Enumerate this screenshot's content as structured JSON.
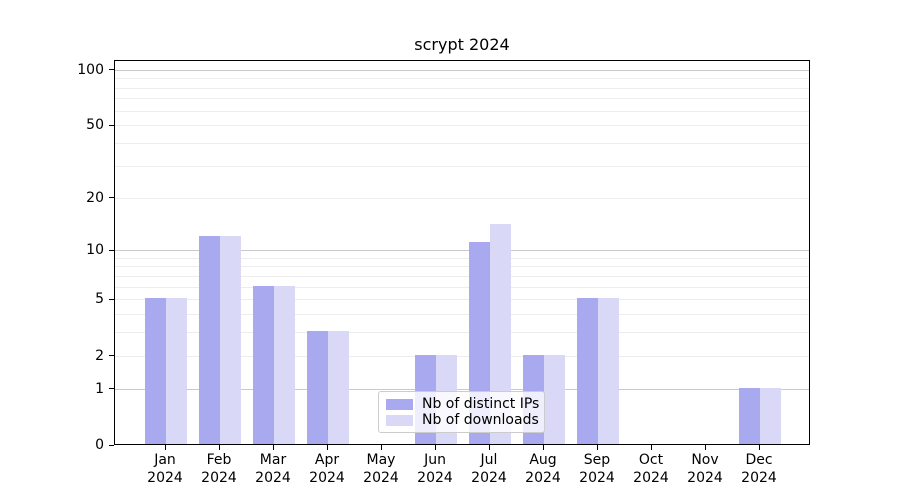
{
  "title": "scrypt 2024",
  "legend": {
    "items": [
      {
        "label": "Nb of distinct IPs"
      },
      {
        "label": "Nb of downloads"
      }
    ]
  },
  "colors": {
    "distinct_ips_bar": "#a9a9f0",
    "downloads_bar": "#d9d9f7",
    "major_gridline": "#c9c9c9",
    "minor_gridline": "#ededed",
    "axis_frame": "#000000",
    "legend_border": "#cccccc"
  },
  "chart_data": {
    "type": "bar",
    "title": "scrypt 2024",
    "categories": [
      "Jan 2024",
      "Feb 2024",
      "Mar 2024",
      "Apr 2024",
      "May 2024",
      "Jun 2024",
      "Jul 2024",
      "Aug 2024",
      "Sep 2024",
      "Oct 2024",
      "Nov 2024",
      "Dec 2024"
    ],
    "series": [
      {
        "name": "Nb of distinct IPs",
        "color": "#a9a9f0",
        "values": [
          5,
          12,
          6,
          3,
          0,
          2,
          11,
          2,
          5,
          0,
          0,
          1
        ]
      },
      {
        "name": "Nb of downloads",
        "color": "#d9d9f7",
        "values": [
          5,
          12,
          6,
          3,
          0,
          2,
          14,
          2,
          5,
          0,
          0,
          1
        ]
      }
    ],
    "xlabel": "",
    "ylabel": "",
    "yscale": "log1p",
    "ylim": [
      0,
      113
    ],
    "yticks": [
      0,
      1,
      2,
      5,
      10,
      20,
      50,
      100
    ],
    "minor_yticks": [
      2,
      3,
      4,
      5,
      6,
      7,
      8,
      9,
      20,
      30,
      40,
      50,
      60,
      70,
      80,
      90
    ],
    "major_grid_values": [
      1,
      10,
      100
    ],
    "grid": true,
    "legend_position": "lower center inside"
  }
}
